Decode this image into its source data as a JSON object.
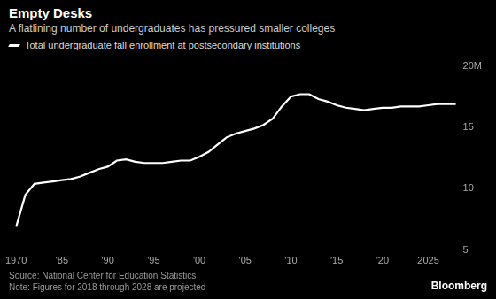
{
  "chart_data": {
    "type": "line",
    "title": "Empty Desks",
    "subtitle": "A flatlining number of undergraduates has pressured smaller colleges",
    "categories": [
      "1970",
      null,
      null,
      null,
      null,
      "'85",
      null,
      null,
      null,
      null,
      "'90",
      null,
      null,
      null,
      null,
      "'95",
      null,
      null,
      null,
      null,
      "'00",
      null,
      null,
      null,
      null,
      "'05",
      null,
      null,
      null,
      null,
      "'10",
      null,
      null,
      null,
      null,
      "'15",
      null,
      null,
      null,
      null,
      "'20",
      null,
      null,
      null,
      null,
      "2025",
      null,
      null,
      null
    ],
    "series": [
      {
        "name": "Total undergraduate fall enrollment at postsecondary institutions",
        "color": "#ffffff",
        "values": [
          6.9,
          9.5,
          10.4,
          10.5,
          10.6,
          10.7,
          10.8,
          11.0,
          11.3,
          11.6,
          11.8,
          12.3,
          12.4,
          12.2,
          12.1,
          12.1,
          12.1,
          12.2,
          12.3,
          12.3,
          12.6,
          13.0,
          13.6,
          14.2,
          14.5,
          14.7,
          14.9,
          15.2,
          15.7,
          16.7,
          17.5,
          17.7,
          17.7,
          17.3,
          17.1,
          16.8,
          16.6,
          16.5,
          16.4,
          16.5,
          16.6,
          16.6,
          16.7,
          16.7,
          16.7,
          16.8,
          16.9,
          16.9,
          16.9
        ]
      }
    ],
    "ylim": [
      5,
      20
    ],
    "yticks": [
      5,
      10,
      15,
      {
        "value": 20,
        "label": "20M"
      }
    ],
    "grid": false,
    "legend": "top-left",
    "source": "Source: National Center for Education Statistics",
    "note": "Note: Figures for 2018 through 2028 are projected",
    "logo": "Bloomberg"
  }
}
